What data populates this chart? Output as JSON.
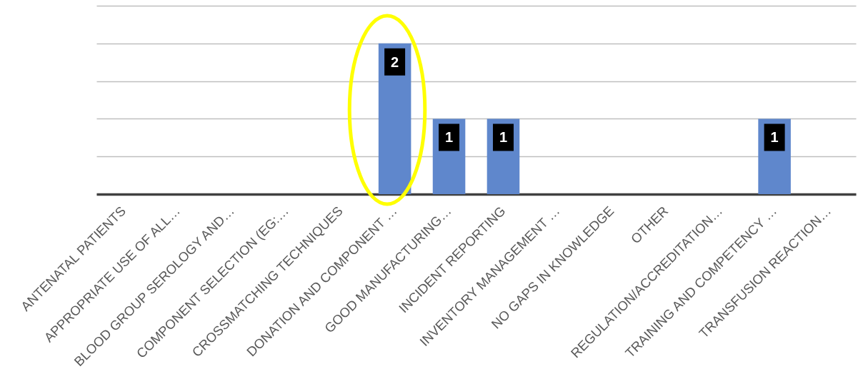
{
  "chart_data": {
    "type": "bar",
    "categories": [
      "ANTENATAL PATIENTS",
      "APPROPRIATE USE OF ALL…",
      "BLOOD GROUP SEROLOGY AND…",
      "COMPONENT SELECTION (EG:…",
      "CROSSMATCHING TECHNIQUES",
      "DONATION AND COMPONENT …",
      "GOOD MANUFACTURING…",
      "INCIDENT REPORTING",
      "INVENTORY MANAGEMENT …",
      "NO GAPS IN KNOWLEDGE",
      "OTHER",
      "REGULATION/ACCREDITATION…",
      "TRAINING AND COMPETENCY …",
      "TRANSFUSION REACTION…"
    ],
    "values": [
      0,
      0,
      0,
      0,
      0,
      2,
      1,
      1,
      0,
      0,
      0,
      0,
      1,
      0
    ],
    "value_labels": [
      null,
      null,
      null,
      null,
      null,
      "2",
      "1",
      "1",
      null,
      null,
      null,
      null,
      "1",
      null
    ],
    "color": "#5f87cc",
    "ylim": [
      0,
      2.5
    ],
    "yticks": [
      {
        "value": 0,
        "label": null
      },
      {
        "value": 0.5,
        "label": null
      },
      {
        "value": 1,
        "label": null
      },
      {
        "value": 1.5,
        "label": null
      },
      {
        "value": 2,
        "label": null
      },
      {
        "value": 2.5,
        "label": null
      }
    ],
    "grid": "y",
    "tick_labels": "x"
  }
}
